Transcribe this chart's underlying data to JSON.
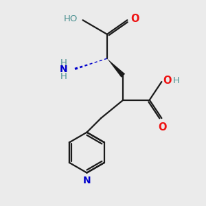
{
  "bg_color": "#ebebeb",
  "bond_color": "#1a1a1a",
  "o_color": "#ee1111",
  "n_color": "#0000cc",
  "ho_color": "#4a9090",
  "fig_size": [
    3.0,
    3.0
  ],
  "dpi": 100,
  "xlim": [
    0,
    10
  ],
  "ylim": [
    0,
    10
  ]
}
